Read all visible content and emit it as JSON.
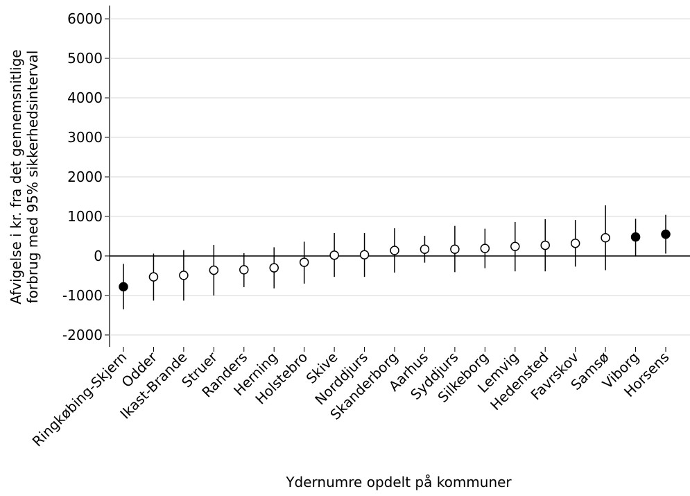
{
  "chart_data": {
    "type": "errorbar",
    "x_label": "Ydernumre opdelt på kommuner",
    "y_label": [
      "Afvigelse i kr. fra det gennemsnitlige",
      "forbrug med 95% sikkerhedsinterval"
    ],
    "categories": [
      "Ringkøbing-Skjern",
      "Odder",
      "Ikast-Brande",
      "Struer",
      "Randers",
      "Herning",
      "Holstebro",
      "Skive",
      "Norddjurs",
      "Skanderborg",
      "Aarhus",
      "Syddjurs",
      "Silkeborg",
      "Lemvig",
      "Hedensted",
      "Favrskov",
      "Samsø",
      "Viborg",
      "Horsens"
    ],
    "values": [
      -780,
      -530,
      -490,
      -360,
      -350,
      -300,
      -160,
      20,
      30,
      140,
      170,
      170,
      190,
      240,
      270,
      320,
      460,
      480,
      550
    ],
    "lower": [
      -1350,
      -1130,
      -1130,
      -1000,
      -790,
      -820,
      -700,
      -530,
      -530,
      -420,
      -170,
      -410,
      -310,
      -390,
      -390,
      -270,
      -360,
      0,
      60
    ],
    "upper": [
      -200,
      60,
      150,
      280,
      70,
      220,
      360,
      580,
      580,
      700,
      510,
      760,
      690,
      860,
      930,
      910,
      1280,
      940,
      1040
    ],
    "filled": [
      true,
      false,
      false,
      false,
      false,
      false,
      false,
      false,
      false,
      false,
      false,
      false,
      false,
      false,
      false,
      false,
      false,
      true,
      true
    ],
    "color": "#000000",
    "ylim": [
      -2300,
      6300
    ],
    "yticks": [
      -2000,
      -1000,
      0,
      1000,
      2000,
      3000,
      4000,
      5000,
      6000
    ],
    "hline": 0,
    "grid": true
  }
}
